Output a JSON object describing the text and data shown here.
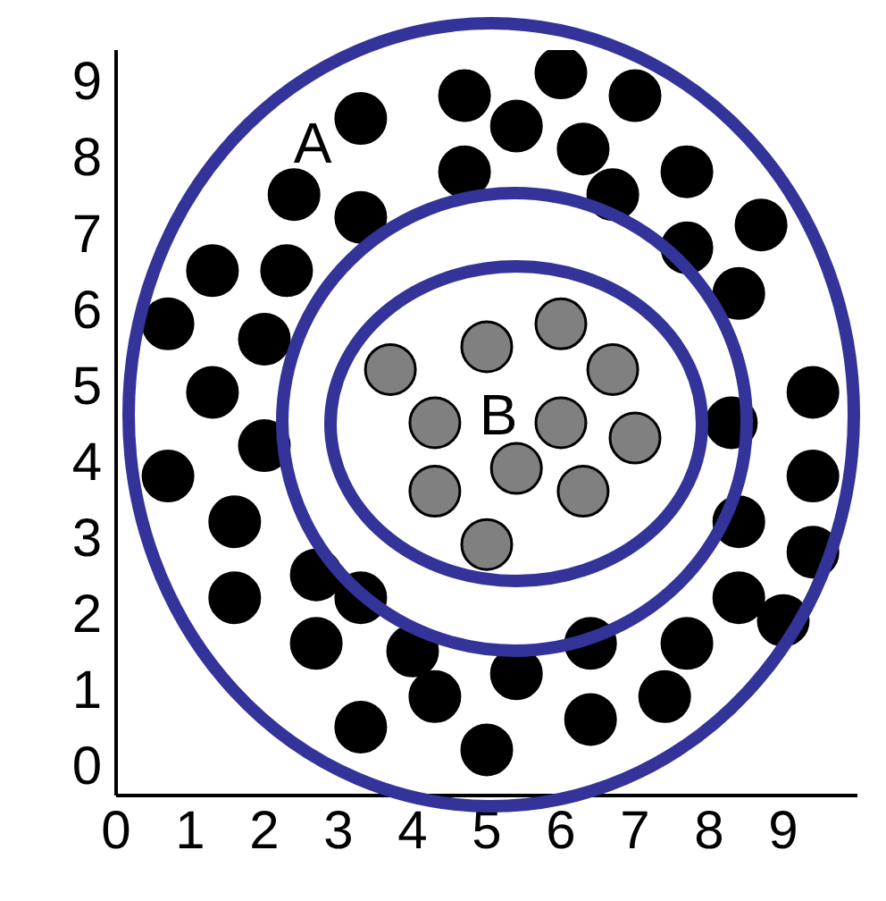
{
  "chart_data": {
    "type": "scatter",
    "xlim": [
      0,
      10
    ],
    "ylim": [
      -0.4,
      9.4
    ],
    "xticks": [
      0,
      1,
      2,
      3,
      4,
      5,
      6,
      7,
      8,
      9
    ],
    "yticks": [
      0,
      1,
      2,
      3,
      4,
      5,
      6,
      7,
      8,
      9
    ],
    "grid": false,
    "legend": false,
    "marker": "circle",
    "annotations": [
      "A",
      "B"
    ],
    "series": [
      {
        "color": "#000000",
        "x": [
          6.0,
          4.7,
          7.0,
          3.3,
          5.4,
          6.3,
          7.7,
          4.7,
          2.4,
          6.7,
          3.3,
          8.7,
          1.3,
          2.3,
          7.7,
          8.4,
          0.7,
          2.0,
          1.3,
          9.4,
          2.0,
          8.3,
          0.7,
          9.4,
          1.6,
          8.4,
          9.4,
          2.7,
          1.6,
          3.3,
          8.4,
          9.0,
          2.7,
          4.0,
          5.4,
          6.4,
          7.7,
          4.3,
          7.4,
          3.3,
          6.4,
          5.0
        ],
        "values": [
          9.1,
          8.8,
          8.8,
          8.5,
          8.4,
          8.1,
          7.8,
          7.8,
          7.5,
          7.5,
          7.2,
          7.1,
          6.5,
          6.5,
          6.8,
          6.2,
          5.8,
          5.6,
          4.9,
          4.9,
          4.2,
          4.5,
          3.8,
          3.8,
          3.2,
          3.2,
          2.8,
          2.5,
          2.2,
          2.2,
          2.2,
          1.9,
          1.6,
          1.5,
          1.2,
          1.6,
          1.6,
          0.9,
          0.9,
          0.5,
          0.6,
          0.2
        ]
      },
      {
        "color": "#808080",
        "x": [
          6.0,
          5.0,
          6.7,
          3.7,
          4.3,
          6.0,
          7.0,
          5.4,
          4.3,
          6.3,
          5.0
        ],
        "values": [
          5.8,
          5.5,
          5.2,
          5.2,
          4.5,
          4.5,
          4.3,
          3.9,
          3.6,
          3.6,
          2.9
        ]
      }
    ]
  }
}
